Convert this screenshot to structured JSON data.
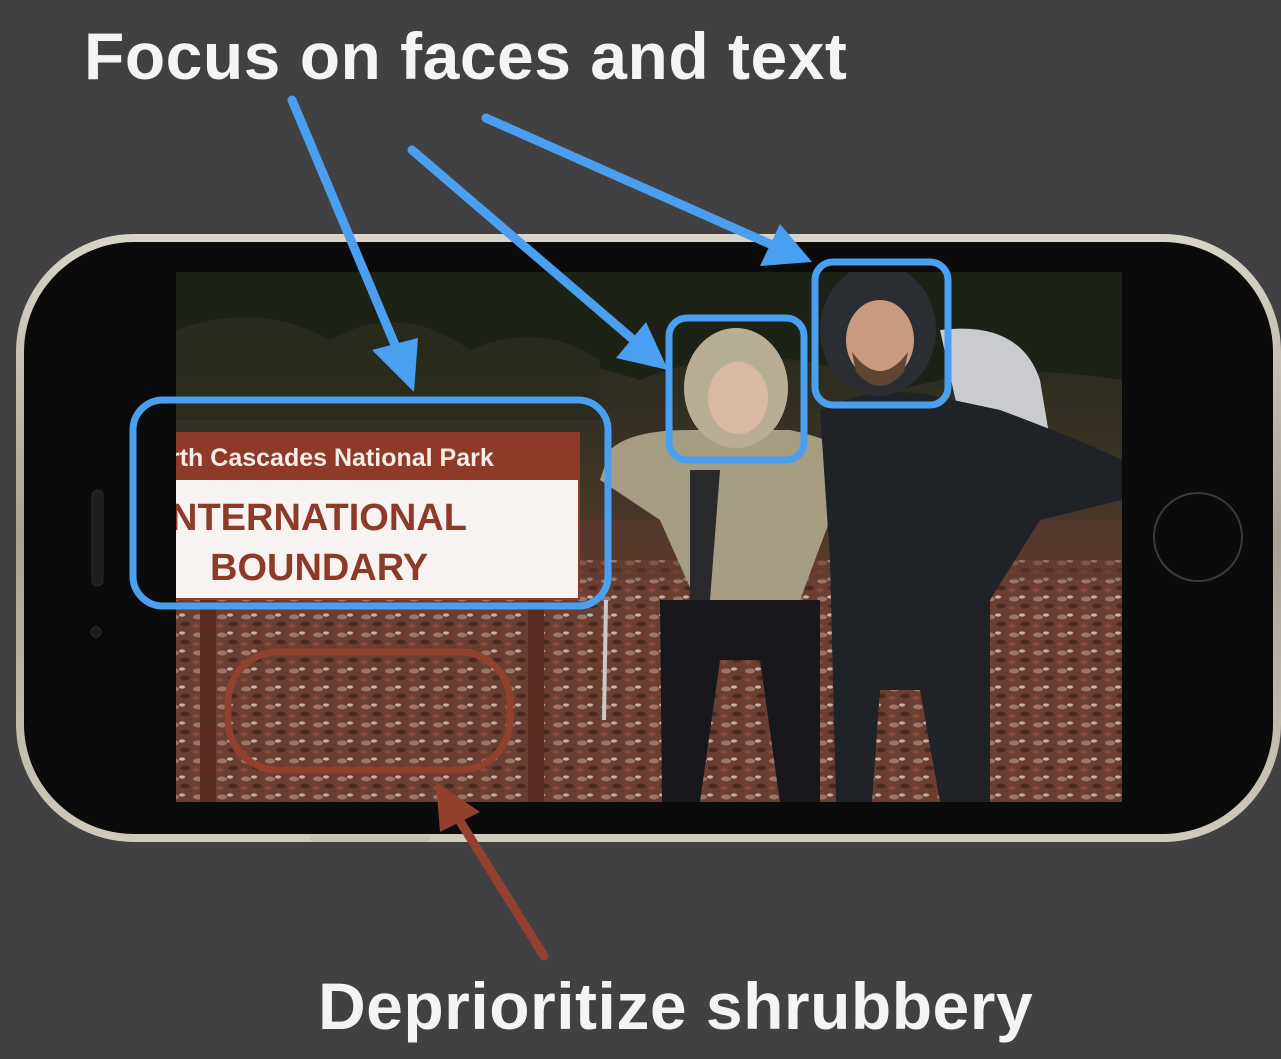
{
  "captions": {
    "top": "Focus on faces and text",
    "bottom": "Deprioritize shrubbery"
  },
  "sign": {
    "park_name": "rth Cascades National Park",
    "line1": "NTERNATIONAL",
    "line2": "BOUNDARY"
  },
  "colors": {
    "background": "#414144",
    "focus": "#4a9ff0",
    "deprioritize": "#93402f",
    "text": "#f4f4f4",
    "sign_brown": "#8d3a29"
  },
  "icons": {
    "focus_boxes": "rounded-rectangle-outline",
    "arrows": "arrow-icon",
    "phone": "smartphone-landscape"
  }
}
